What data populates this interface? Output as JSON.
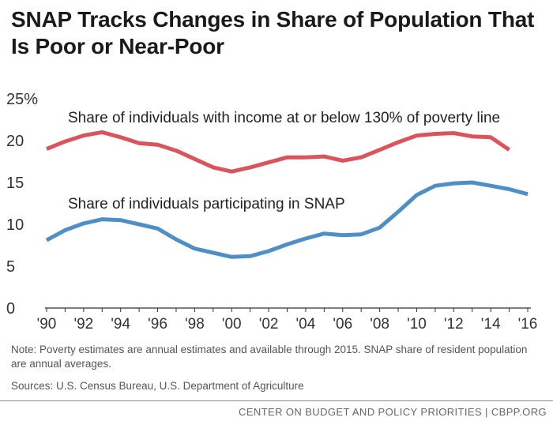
{
  "chart_data": {
    "type": "line",
    "title": "SNAP Tracks Changes in Share of Population That Is Poor or Near-Poor",
    "xlabel": "",
    "ylabel": "",
    "xlim": [
      1990,
      2016
    ],
    "ylim": [
      0,
      25
    ],
    "x_ticks": [
      1990,
      1992,
      1994,
      1996,
      1998,
      2000,
      2002,
      2004,
      2006,
      2008,
      2010,
      2012,
      2014,
      2016
    ],
    "x_tick_labels": [
      "'90",
      "'92",
      "'94",
      "'96",
      "'98",
      "'00",
      "'02",
      "'04",
      "'06",
      "'08",
      "'10",
      "'12",
      "'14",
      "'16"
    ],
    "y_ticks": [
      0,
      5,
      10,
      15,
      20,
      25
    ],
    "y_tick_labels": [
      "0",
      "5",
      "10",
      "15",
      "20",
      "25%"
    ],
    "grid": false,
    "series": [
      {
        "name": "Share of individuals with income at or below 130% of poverty line",
        "color": "#d9545c",
        "x": [
          1990,
          1991,
          1992,
          1993,
          1994,
          1995,
          1996,
          1997,
          1998,
          1999,
          2000,
          2001,
          2002,
          2003,
          2004,
          2005,
          2006,
          2007,
          2008,
          2009,
          2010,
          2011,
          2012,
          2013,
          2014,
          2015
        ],
        "values": [
          19.0,
          19.9,
          20.6,
          21.0,
          20.4,
          19.7,
          19.5,
          18.8,
          17.8,
          16.8,
          16.3,
          16.8,
          17.4,
          18.0,
          18.0,
          18.1,
          17.6,
          18.0,
          18.9,
          19.8,
          20.6,
          20.8,
          20.9,
          20.5,
          20.4,
          18.9
        ]
      },
      {
        "name": "Share of individuals participating in SNAP",
        "color": "#4f8fc6",
        "x": [
          1990,
          1991,
          1992,
          1993,
          1994,
          1995,
          1996,
          1997,
          1998,
          1999,
          2000,
          2001,
          2002,
          2003,
          2004,
          2005,
          2006,
          2007,
          2008,
          2009,
          2010,
          2011,
          2012,
          2013,
          2014,
          2015,
          2016
        ],
        "values": [
          8.1,
          9.3,
          10.1,
          10.6,
          10.5,
          10.0,
          9.5,
          8.2,
          7.1,
          6.6,
          6.1,
          6.2,
          6.8,
          7.6,
          8.3,
          8.9,
          8.7,
          8.8,
          9.6,
          11.5,
          13.5,
          14.6,
          14.9,
          15.0,
          14.6,
          14.2,
          13.6
        ]
      }
    ]
  },
  "note": "Note: Poverty estimates are annual estimates and available through 2015. SNAP share of resident population are annual averages.",
  "sources": "Sources: U.S. Census Bureau, U.S. Department of Agriculture",
  "footer": "CENTER ON BUDGET AND POLICY PRIORITIES | CBPP.ORG"
}
